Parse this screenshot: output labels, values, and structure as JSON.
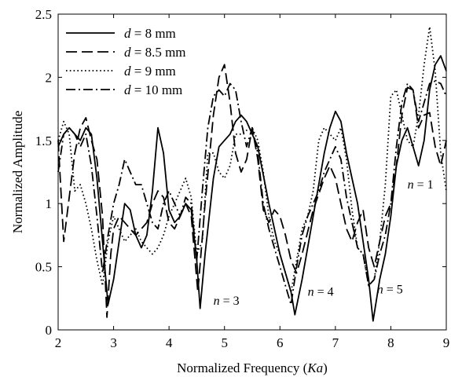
{
  "chart_data": {
    "type": "line",
    "xlabel_prefix": "Normalized Frequency (",
    "xlabel_var": "Ka",
    "xlabel_suffix": ")",
    "ylabel": "Normalized Amplitude",
    "xlim": [
      2,
      9
    ],
    "ylim": [
      0,
      2.5
    ],
    "xticks": [
      2,
      3,
      4,
      5,
      6,
      7,
      8,
      9
    ],
    "yticks": [
      0,
      0.5,
      1,
      1.5,
      2,
      2.5
    ],
    "ytick_labels": [
      "0",
      "0.5",
      "1",
      "1.5",
      "2",
      "2.5"
    ],
    "grid": false,
    "legend_position": "top-left",
    "series": [
      {
        "name_var": "d",
        "name_rest": " = 8 mm",
        "dash": "solid",
        "points": [
          [
            2,
            1.45
          ],
          [
            2.1,
            1.55
          ],
          [
            2.2,
            1.6
          ],
          [
            2.3,
            1.55
          ],
          [
            2.4,
            1.5
          ],
          [
            2.5,
            1.6
          ],
          [
            2.6,
            1.55
          ],
          [
            2.7,
            1.2
          ],
          [
            2.8,
            0.7
          ],
          [
            2.9,
            0.2
          ],
          [
            3.0,
            0.4
          ],
          [
            3.1,
            0.7
          ],
          [
            3.2,
            1.0
          ],
          [
            3.3,
            0.95
          ],
          [
            3.4,
            0.75
          ],
          [
            3.5,
            0.65
          ],
          [
            3.6,
            0.75
          ],
          [
            3.7,
            1.1
          ],
          [
            3.8,
            1.6
          ],
          [
            3.9,
            1.4
          ],
          [
            4.0,
            0.95
          ],
          [
            4.1,
            0.85
          ],
          [
            4.2,
            0.9
          ],
          [
            4.3,
            1.0
          ],
          [
            4.4,
            0.95
          ],
          [
            4.5,
            0.55
          ],
          [
            4.56,
            0.17
          ],
          [
            4.65,
            0.6
          ],
          [
            4.8,
            1.2
          ],
          [
            4.9,
            1.45
          ],
          [
            5.0,
            1.5
          ],
          [
            5.1,
            1.55
          ],
          [
            5.2,
            1.65
          ],
          [
            5.3,
            1.7
          ],
          [
            5.4,
            1.65
          ],
          [
            5.5,
            1.55
          ],
          [
            5.6,
            1.45
          ],
          [
            5.8,
            1.0
          ],
          [
            6.0,
            0.6
          ],
          [
            6.1,
            0.45
          ],
          [
            6.2,
            0.3
          ],
          [
            6.27,
            0.12
          ],
          [
            6.4,
            0.4
          ],
          [
            6.6,
            0.9
          ],
          [
            6.8,
            1.4
          ],
          [
            6.9,
            1.6
          ],
          [
            7.0,
            1.73
          ],
          [
            7.1,
            1.65
          ],
          [
            7.2,
            1.4
          ],
          [
            7.3,
            1.2
          ],
          [
            7.4,
            1.0
          ],
          [
            7.5,
            0.7
          ],
          [
            7.6,
            0.4
          ],
          [
            7.68,
            0.07
          ],
          [
            7.8,
            0.4
          ],
          [
            7.9,
            0.6
          ],
          [
            8.0,
            0.9
          ],
          [
            8.1,
            1.3
          ],
          [
            8.2,
            1.5
          ],
          [
            8.3,
            1.6
          ],
          [
            8.4,
            1.45
          ],
          [
            8.5,
            1.3
          ],
          [
            8.6,
            1.5
          ],
          [
            8.7,
            1.9
          ],
          [
            8.8,
            2.1
          ],
          [
            8.9,
            2.17
          ],
          [
            9.0,
            2.05
          ]
        ]
      },
      {
        "name_var": "d",
        "name_rest": " = 8.5 mm",
        "dash": "long-dash",
        "points": [
          [
            2,
            1.5
          ],
          [
            2.1,
            0.7
          ],
          [
            2.2,
            1.05
          ],
          [
            2.3,
            1.4
          ],
          [
            2.4,
            1.6
          ],
          [
            2.5,
            1.68
          ],
          [
            2.6,
            1.5
          ],
          [
            2.7,
            1.35
          ],
          [
            2.8,
            0.9
          ],
          [
            2.88,
            0.1
          ],
          [
            2.95,
            0.6
          ],
          [
            3.0,
            0.8
          ],
          [
            3.1,
            0.9
          ],
          [
            3.2,
            0.85
          ],
          [
            3.3,
            0.8
          ],
          [
            3.4,
            0.75
          ],
          [
            3.5,
            0.8
          ],
          [
            3.6,
            0.85
          ],
          [
            3.7,
            1.0
          ],
          [
            3.8,
            1.1
          ],
          [
            3.9,
            1.05
          ],
          [
            4.0,
            0.85
          ],
          [
            4.1,
            0.8
          ],
          [
            4.2,
            0.9
          ],
          [
            4.3,
            1.0
          ],
          [
            4.4,
            0.9
          ],
          [
            4.52,
            0.3
          ],
          [
            4.65,
            1.0
          ],
          [
            4.8,
            1.7
          ],
          [
            4.9,
            2.0
          ],
          [
            5.0,
            2.1
          ],
          [
            5.1,
            1.8
          ],
          [
            5.2,
            1.4
          ],
          [
            5.3,
            1.25
          ],
          [
            5.4,
            1.35
          ],
          [
            5.5,
            1.6
          ],
          [
            5.6,
            1.35
          ],
          [
            5.7,
            0.95
          ],
          [
            5.8,
            0.85
          ],
          [
            5.9,
            0.95
          ],
          [
            6.0,
            0.9
          ],
          [
            6.1,
            0.75
          ],
          [
            6.2,
            0.55
          ],
          [
            6.3,
            0.45
          ],
          [
            6.4,
            0.6
          ],
          [
            6.6,
            0.95
          ],
          [
            6.8,
            1.2
          ],
          [
            6.9,
            1.3
          ],
          [
            7.0,
            1.2
          ],
          [
            7.1,
            1.0
          ],
          [
            7.2,
            0.8
          ],
          [
            7.3,
            0.7
          ],
          [
            7.4,
            0.85
          ],
          [
            7.5,
            0.95
          ],
          [
            7.6,
            0.65
          ],
          [
            7.7,
            0.5
          ],
          [
            7.8,
            0.7
          ],
          [
            7.9,
            0.9
          ],
          [
            8.0,
            1.0
          ],
          [
            8.1,
            1.3
          ],
          [
            8.2,
            1.7
          ],
          [
            8.3,
            1.92
          ],
          [
            8.4,
            1.9
          ],
          [
            8.5,
            1.6
          ],
          [
            8.6,
            1.7
          ],
          [
            8.7,
            1.72
          ],
          [
            8.8,
            1.45
          ],
          [
            8.9,
            1.3
          ],
          [
            9.0,
            1.5
          ]
        ]
      },
      {
        "name_var": "d",
        "name_rest": " = 9 mm",
        "dash": "dotted",
        "points": [
          [
            2,
            1.5
          ],
          [
            2.1,
            1.65
          ],
          [
            2.2,
            1.55
          ],
          [
            2.3,
            1.1
          ],
          [
            2.4,
            1.15
          ],
          [
            2.5,
            1.0
          ],
          [
            2.6,
            0.8
          ],
          [
            2.7,
            0.55
          ],
          [
            2.8,
            0.35
          ],
          [
            2.9,
            0.7
          ],
          [
            3.0,
            0.9
          ],
          [
            3.1,
            0.8
          ],
          [
            3.2,
            0.7
          ],
          [
            3.3,
            0.75
          ],
          [
            3.4,
            0.8
          ],
          [
            3.5,
            0.7
          ],
          [
            3.6,
            0.65
          ],
          [
            3.7,
            0.6
          ],
          [
            3.8,
            0.65
          ],
          [
            3.9,
            0.75
          ],
          [
            4.0,
            0.9
          ],
          [
            4.1,
            1.0
          ],
          [
            4.2,
            1.1
          ],
          [
            4.3,
            1.2
          ],
          [
            4.4,
            1.05
          ],
          [
            4.5,
            0.6
          ],
          [
            4.6,
            0.7
          ],
          [
            4.7,
            1.4
          ],
          [
            4.8,
            1.4
          ],
          [
            4.9,
            1.25
          ],
          [
            5.0,
            1.2
          ],
          [
            5.1,
            1.3
          ],
          [
            5.2,
            1.55
          ],
          [
            5.3,
            1.55
          ],
          [
            5.4,
            1.58
          ],
          [
            5.5,
            1.6
          ],
          [
            5.6,
            1.5
          ],
          [
            5.7,
            1.25
          ],
          [
            5.8,
            0.9
          ],
          [
            5.9,
            0.7
          ],
          [
            6.0,
            0.6
          ],
          [
            6.1,
            0.45
          ],
          [
            6.2,
            0.3
          ],
          [
            6.3,
            0.55
          ],
          [
            6.4,
            0.8
          ],
          [
            6.5,
            0.9
          ],
          [
            6.6,
            1.1
          ],
          [
            6.7,
            1.5
          ],
          [
            6.8,
            1.6
          ],
          [
            6.9,
            1.55
          ],
          [
            7.0,
            1.5
          ],
          [
            7.1,
            1.6
          ],
          [
            7.2,
            1.35
          ],
          [
            7.3,
            0.95
          ],
          [
            7.4,
            0.65
          ],
          [
            7.5,
            0.6
          ],
          [
            7.6,
            0.35
          ],
          [
            7.7,
            0.4
          ],
          [
            7.8,
            0.7
          ],
          [
            7.9,
            1.15
          ],
          [
            8.0,
            1.85
          ],
          [
            8.1,
            1.9
          ],
          [
            8.2,
            1.7
          ],
          [
            8.3,
            1.5
          ],
          [
            8.4,
            1.45
          ],
          [
            8.5,
            1.7
          ],
          [
            8.6,
            2.1
          ],
          [
            8.7,
            2.4
          ],
          [
            8.8,
            2.05
          ],
          [
            8.9,
            1.4
          ],
          [
            9.0,
            1.1
          ]
        ]
      },
      {
        "name_var": "d",
        "name_rest": " = 10 mm",
        "dash": "dash-dot",
        "points": [
          [
            2,
            1.25
          ],
          [
            2.1,
            1.55
          ],
          [
            2.2,
            1.6
          ],
          [
            2.3,
            1.55
          ],
          [
            2.4,
            1.45
          ],
          [
            2.5,
            1.55
          ],
          [
            2.6,
            1.3
          ],
          [
            2.7,
            0.9
          ],
          [
            2.8,
            0.45
          ],
          [
            2.9,
            0.75
          ],
          [
            3.0,
            1.0
          ],
          [
            3.1,
            1.15
          ],
          [
            3.2,
            1.35
          ],
          [
            3.3,
            1.25
          ],
          [
            3.4,
            1.15
          ],
          [
            3.5,
            1.15
          ],
          [
            3.6,
            1.0
          ],
          [
            3.7,
            0.85
          ],
          [
            3.8,
            0.8
          ],
          [
            3.9,
            1.0
          ],
          [
            4.0,
            1.1
          ],
          [
            4.1,
            1.0
          ],
          [
            4.2,
            0.9
          ],
          [
            4.3,
            1.05
          ],
          [
            4.4,
            1.0
          ],
          [
            4.5,
            0.55
          ],
          [
            4.6,
            1.1
          ],
          [
            4.7,
            1.6
          ],
          [
            4.8,
            1.85
          ],
          [
            4.9,
            1.9
          ],
          [
            5.0,
            1.85
          ],
          [
            5.1,
            1.95
          ],
          [
            5.2,
            1.9
          ],
          [
            5.3,
            1.65
          ],
          [
            5.4,
            1.45
          ],
          [
            5.5,
            1.6
          ],
          [
            5.6,
            1.4
          ],
          [
            5.7,
            1.0
          ],
          [
            5.8,
            0.8
          ],
          [
            5.9,
            0.65
          ],
          [
            6.0,
            0.5
          ],
          [
            6.1,
            0.35
          ],
          [
            6.2,
            0.2
          ],
          [
            6.3,
            0.5
          ],
          [
            6.4,
            0.75
          ],
          [
            6.5,
            0.9
          ],
          [
            6.6,
            1.0
          ],
          [
            6.7,
            1.1
          ],
          [
            6.8,
            1.25
          ],
          [
            6.9,
            1.35
          ],
          [
            7.0,
            1.45
          ],
          [
            7.1,
            1.35
          ],
          [
            7.2,
            1.05
          ],
          [
            7.3,
            0.85
          ],
          [
            7.4,
            0.65
          ],
          [
            7.5,
            0.6
          ],
          [
            7.6,
            0.35
          ],
          [
            7.7,
            0.4
          ],
          [
            7.8,
            0.6
          ],
          [
            7.9,
            0.75
          ],
          [
            8.0,
            1.0
          ],
          [
            8.1,
            1.45
          ],
          [
            8.2,
            1.8
          ],
          [
            8.3,
            1.95
          ],
          [
            8.4,
            1.9
          ],
          [
            8.5,
            1.65
          ],
          [
            8.6,
            1.8
          ],
          [
            8.7,
            1.95
          ],
          [
            8.8,
            1.97
          ],
          [
            8.9,
            1.95
          ],
          [
            9.0,
            1.85
          ]
        ]
      }
    ],
    "annotations": [
      {
        "var": "n",
        "rest": " = 1",
        "x": 8.3,
        "y": 1.12
      },
      {
        "var": "n",
        "rest": " = 3",
        "x": 4.8,
        "y": 0.2
      },
      {
        "var": "n",
        "rest": " = 4",
        "x": 6.5,
        "y": 0.27
      },
      {
        "var": "n",
        "rest": " = 5",
        "x": 7.75,
        "y": 0.29
      }
    ]
  }
}
